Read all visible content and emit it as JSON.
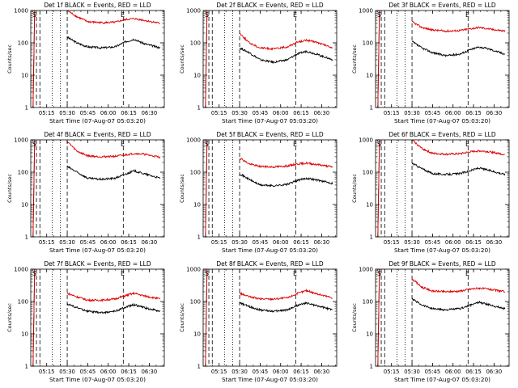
{
  "figure": {
    "background": "#ffffff",
    "axis_color": "#000000"
  },
  "common": {
    "ylabel": "Counts/sec",
    "xlabel": "Start Time (07-Aug-07 05:03:20)",
    "x_tick_labels": [
      "05:15",
      "05:30",
      "05:45",
      "06:00",
      "06:15",
      "06:30"
    ],
    "y_tick_labels": [
      "1",
      "10",
      "100",
      "1000"
    ],
    "marker_S": "S",
    "marker_E": "E",
    "events_color": "#000000",
    "lld_color": "#dd0000"
  },
  "chart_data": [
    {
      "type": "line",
      "title": "Det 1f BLACK = Events, RED = LLD",
      "xlabel": "Start Time (07-Aug-07 05:03:20)",
      "ylabel": "Counts/sec",
      "yscale": "log",
      "ylim": [
        1,
        1000
      ],
      "xlim": [
        "05:03:20",
        "06:41"
      ],
      "series": [
        {
          "name": "Events",
          "color": "#000000",
          "t": [
            "05:30",
            "05:37",
            "05:45",
            "05:55",
            "06:05",
            "06:12",
            "06:19",
            "06:26",
            "06:38"
          ],
          "values": [
            150,
            100,
            75,
            70,
            75,
            105,
            130,
            95,
            70
          ]
        },
        {
          "name": "LLD",
          "color": "#dd0000",
          "t": [
            "05:30",
            "05:37",
            "05:45",
            "05:55",
            "06:05",
            "06:12",
            "06:19",
            "06:26",
            "06:38"
          ],
          "values": [
            1000,
            650,
            450,
            420,
            430,
            520,
            560,
            500,
            400
          ]
        }
      ]
    },
    {
      "type": "line",
      "title": "Det 2f BLACK = Events, RED = LLD",
      "xlabel": "Start Time (07-Aug-07 05:03:20)",
      "ylabel": "Counts/sec",
      "yscale": "log",
      "ylim": [
        1,
        1000
      ],
      "xlim": [
        "05:03:20",
        "06:41"
      ],
      "series": [
        {
          "name": "Events",
          "color": "#000000",
          "t": [
            "05:30",
            "05:37",
            "05:45",
            "05:55",
            "06:05",
            "06:12",
            "06:19",
            "06:26",
            "06:38"
          ],
          "values": [
            70,
            50,
            30,
            25,
            30,
            45,
            55,
            45,
            30
          ]
        },
        {
          "name": "LLD",
          "color": "#dd0000",
          "t": [
            "05:30",
            "05:37",
            "05:45",
            "05:55",
            "06:05",
            "06:12",
            "06:19",
            "06:26",
            "06:38"
          ],
          "values": [
            200,
            100,
            70,
            65,
            75,
            105,
            120,
            105,
            70
          ]
        }
      ]
    },
    {
      "type": "line",
      "title": "Det 3f BLACK = Events, RED = LLD",
      "xlabel": "Start Time (07-Aug-07 05:03:20)",
      "ylabel": "Counts/sec",
      "yscale": "log",
      "ylim": [
        1,
        1000
      ],
      "xlim": [
        "05:03:20",
        "06:41"
      ],
      "series": [
        {
          "name": "Events",
          "color": "#000000",
          "t": [
            "05:30",
            "05:37",
            "05:45",
            "05:55",
            "06:05",
            "06:12",
            "06:19",
            "06:26",
            "06:38"
          ],
          "values": [
            110,
            70,
            50,
            40,
            45,
            60,
            75,
            65,
            45
          ]
        },
        {
          "name": "LLD",
          "color": "#dd0000",
          "t": [
            "05:30",
            "05:37",
            "05:45",
            "05:55",
            "06:05",
            "06:12",
            "06:19",
            "06:26",
            "06:38"
          ],
          "values": [
            450,
            300,
            250,
            230,
            240,
            270,
            300,
            270,
            230
          ]
        }
      ]
    },
    {
      "type": "line",
      "title": "Det 4f BLACK = Events, RED = LLD",
      "xlabel": "Start Time (07-Aug-07 05:03:20)",
      "ylabel": "Counts/sec",
      "yscale": "log",
      "ylim": [
        1,
        1000
      ],
      "xlim": [
        "05:03:20",
        "06:41"
      ],
      "series": [
        {
          "name": "Events",
          "color": "#000000",
          "t": [
            "05:30",
            "05:37",
            "05:45",
            "05:55",
            "06:05",
            "06:12",
            "06:19",
            "06:26",
            "06:38"
          ],
          "values": [
            150,
            100,
            65,
            60,
            65,
            85,
            110,
            90,
            65
          ]
        },
        {
          "name": "LLD",
          "color": "#dd0000",
          "t": [
            "05:30",
            "05:37",
            "05:45",
            "05:55",
            "06:05",
            "06:12",
            "06:19",
            "06:26",
            "06:38"
          ],
          "values": [
            900,
            450,
            320,
            300,
            310,
            340,
            380,
            360,
            290
          ]
        }
      ]
    },
    {
      "type": "line",
      "title": "Det 5f BLACK = Events, RED = LLD",
      "xlabel": "Start Time (07-Aug-07 05:03:20)",
      "ylabel": "Counts/sec",
      "yscale": "log",
      "ylim": [
        1,
        1000
      ],
      "xlim": [
        "05:03:20",
        "06:41"
      ],
      "series": [
        {
          "name": "Events",
          "color": "#000000",
          "t": [
            "05:30",
            "05:37",
            "05:45",
            "05:55",
            "06:05",
            "06:12",
            "06:19",
            "06:26",
            "06:38"
          ],
          "values": [
            90,
            60,
            40,
            38,
            42,
            55,
            65,
            58,
            45
          ]
        },
        {
          "name": "LLD",
          "color": "#dd0000",
          "t": [
            "05:30",
            "05:37",
            "05:45",
            "05:55",
            "06:05",
            "06:12",
            "06:19",
            "06:26",
            "06:38"
          ],
          "values": [
            280,
            180,
            150,
            145,
            155,
            180,
            190,
            175,
            145
          ]
        }
      ]
    },
    {
      "type": "line",
      "title": "Det 6f BLACK = Events, RED = LLD",
      "xlabel": "Start Time (07-Aug-07 05:03:20)",
      "ylabel": "Counts/sec",
      "yscale": "log",
      "ylim": [
        1,
        1000
      ],
      "xlim": [
        "05:03:20",
        "06:41"
      ],
      "series": [
        {
          "name": "Events",
          "color": "#000000",
          "t": [
            "05:30",
            "05:37",
            "05:45",
            "05:55",
            "06:05",
            "06:12",
            "06:19",
            "06:26",
            "06:38"
          ],
          "values": [
            190,
            130,
            90,
            85,
            90,
            110,
            135,
            115,
            85
          ]
        },
        {
          "name": "LLD",
          "color": "#dd0000",
          "t": [
            "05:30",
            "05:37",
            "05:45",
            "05:55",
            "06:05",
            "06:12",
            "06:19",
            "06:26",
            "06:38"
          ],
          "values": [
            1000,
            550,
            380,
            360,
            370,
            420,
            460,
            430,
            350
          ]
        }
      ]
    },
    {
      "type": "line",
      "title": "Det 7f BLACK = Events, RED = LLD",
      "xlabel": "Start Time (07-Aug-07 05:03:20)",
      "ylabel": "Counts/sec",
      "yscale": "log",
      "ylim": [
        1,
        1000
      ],
      "xlim": [
        "05:03:20",
        "06:41"
      ],
      "series": [
        {
          "name": "Events",
          "color": "#000000",
          "t": [
            "05:30",
            "05:37",
            "05:45",
            "05:55",
            "06:05",
            "06:12",
            "06:19",
            "06:26",
            "06:38"
          ],
          "values": [
            85,
            65,
            50,
            45,
            50,
            65,
            80,
            65,
            50
          ]
        },
        {
          "name": "LLD",
          "color": "#dd0000",
          "t": [
            "05:30",
            "05:37",
            "05:45",
            "05:55",
            "06:05",
            "06:12",
            "06:19",
            "06:26",
            "06:38"
          ],
          "values": [
            180,
            140,
            110,
            110,
            120,
            150,
            180,
            150,
            120
          ]
        }
      ]
    },
    {
      "type": "line",
      "title": "Det 8f BLACK = Events, RED = LLD",
      "xlabel": "Start Time (07-Aug-07 05:03:20)",
      "ylabel": "Counts/sec",
      "yscale": "log",
      "ylim": [
        1,
        1000
      ],
      "xlim": [
        "05:03:20",
        "06:41"
      ],
      "series": [
        {
          "name": "Events",
          "color": "#000000",
          "t": [
            "05:30",
            "05:37",
            "05:45",
            "05:55",
            "06:05",
            "06:12",
            "06:19",
            "06:26",
            "06:38"
          ],
          "values": [
            90,
            70,
            55,
            50,
            55,
            75,
            90,
            75,
            55
          ]
        },
        {
          "name": "LLD",
          "color": "#dd0000",
          "t": [
            "05:30",
            "05:37",
            "05:45",
            "05:55",
            "06:05",
            "06:12",
            "06:19",
            "06:26",
            "06:38"
          ],
          "values": [
            180,
            140,
            120,
            120,
            130,
            175,
            220,
            175,
            130
          ]
        }
      ]
    },
    {
      "type": "line",
      "title": "Det 9f BLACK = Events, RED = LLD",
      "xlabel": "Start Time (07-Aug-07 05:03:20)",
      "ylabel": "Counts/sec",
      "yscale": "log",
      "ylim": [
        1,
        1000
      ],
      "xlim": [
        "05:03:20",
        "06:41"
      ],
      "series": [
        {
          "name": "Events",
          "color": "#000000",
          "t": [
            "05:30",
            "05:37",
            "05:45",
            "05:55",
            "06:05",
            "06:12",
            "06:19",
            "06:26",
            "06:38"
          ],
          "values": [
            120,
            80,
            60,
            55,
            60,
            75,
            95,
            80,
            60
          ]
        },
        {
          "name": "LLD",
          "color": "#dd0000",
          "t": [
            "05:30",
            "05:37",
            "05:45",
            "05:55",
            "06:05",
            "06:12",
            "06:19",
            "06:26",
            "06:38"
          ],
          "values": [
            500,
            280,
            210,
            200,
            210,
            240,
            260,
            240,
            200
          ]
        }
      ]
    }
  ]
}
